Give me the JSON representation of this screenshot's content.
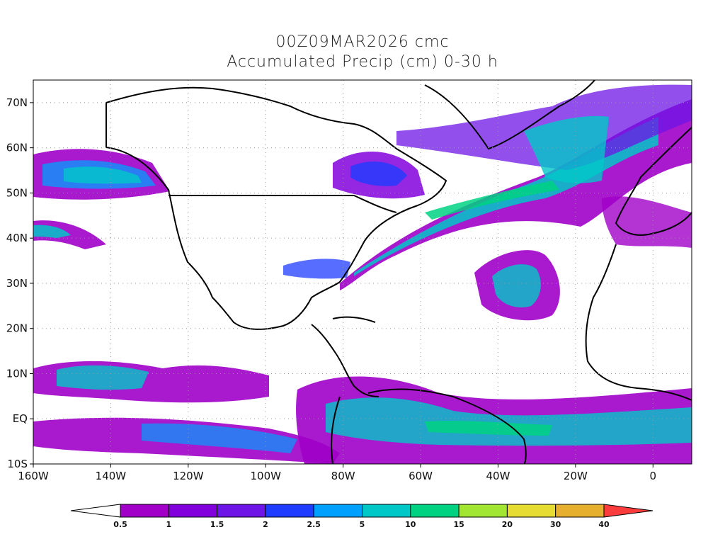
{
  "title_line1": "00Z09MAR2026 cmc",
  "title_line2": "Accumulated Precip (cm) 0-30 h",
  "map": {
    "projection": "cylindrical",
    "lon_range": [
      -160,
      10
    ],
    "lat_range": [
      -10,
      75
    ],
    "grid": "dotted",
    "lat_ticks": [
      {
        "value": 70,
        "label": "70N"
      },
      {
        "value": 60,
        "label": "60N"
      },
      {
        "value": 50,
        "label": "50N"
      },
      {
        "value": 40,
        "label": "40N"
      },
      {
        "value": 30,
        "label": "30N"
      },
      {
        "value": 20,
        "label": "20N"
      },
      {
        "value": 10,
        "label": "10N"
      },
      {
        "value": 0,
        "label": "EQ"
      },
      {
        "value": -10,
        "label": "10S"
      }
    ],
    "lon_ticks": [
      {
        "value": -160,
        "label": "160W"
      },
      {
        "value": -140,
        "label": "140W"
      },
      {
        "value": -120,
        "label": "120W"
      },
      {
        "value": -100,
        "label": "100W"
      },
      {
        "value": -80,
        "label": "80W"
      },
      {
        "value": -60,
        "label": "60W"
      },
      {
        "value": -40,
        "label": "40W"
      },
      {
        "value": -20,
        "label": "20W"
      },
      {
        "value": 0,
        "label": "0"
      }
    ]
  },
  "colorbar": {
    "labels": [
      "0.5",
      "1",
      "1.5",
      "2",
      "2.5",
      "5",
      "10",
      "15",
      "20",
      "30",
      "40"
    ],
    "colors": [
      "#a000c8",
      "#8200dc",
      "#6e14e6",
      "#1e3cff",
      "#00a0ff",
      "#00c8c8",
      "#00d282",
      "#a0e632",
      "#e6dc32",
      "#e6af2d",
      "#f08228",
      "#fa3c3c"
    ],
    "low_color": "#ffffff"
  }
}
